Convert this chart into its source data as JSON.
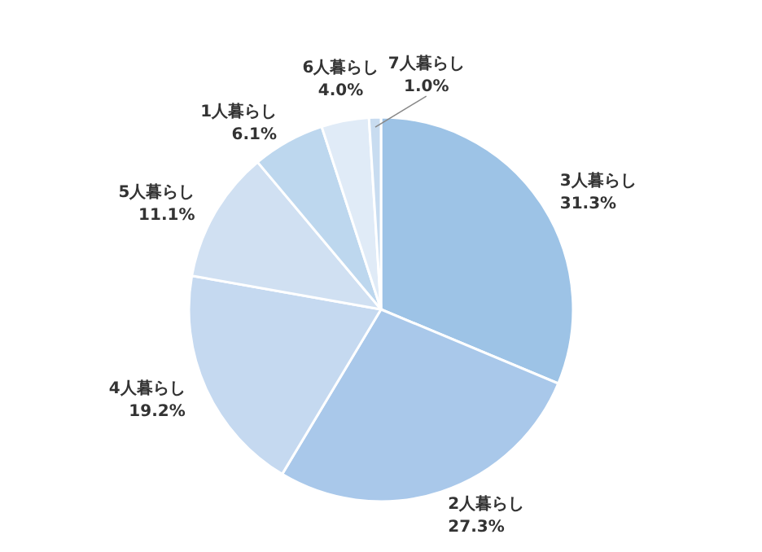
{
  "chart_data": {
    "type": "pie",
    "categories": [
      "3人暮らし",
      "2人暮らし",
      "4人暮らし",
      "5人暮らし",
      "1人暮らし",
      "6人暮らし",
      "7人暮らし"
    ],
    "values": [
      31.3,
      27.3,
      19.2,
      11.1,
      6.1,
      4.0,
      1.0
    ],
    "value_labels": [
      "31.3%",
      "27.3%",
      "19.2%",
      "11.1%",
      "6.1%",
      "4.0%",
      "1.0%"
    ],
    "colors": [
      "#9dc3e6",
      "#a9c8ea",
      "#c5d9f0",
      "#d0e0f2",
      "#bdd7ee",
      "#e0ebf7",
      "#c8dcf0"
    ],
    "legend": false
  }
}
